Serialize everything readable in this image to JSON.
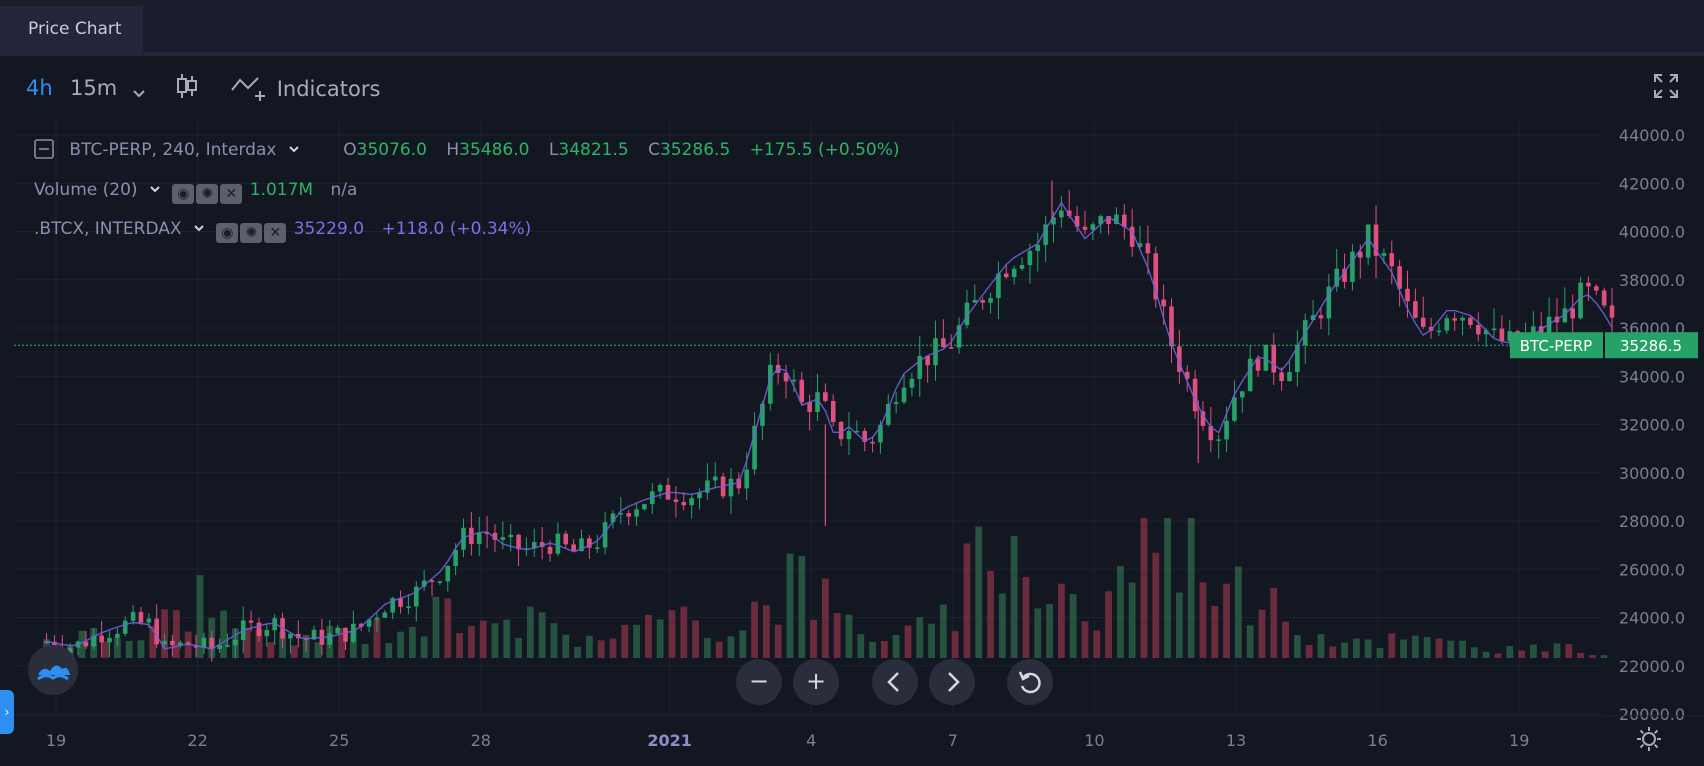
{
  "tab": {
    "title": "Price Chart"
  },
  "toolbar": {
    "interval_active": "4h",
    "interval_alt": "15m",
    "indicators_label": "Indicators"
  },
  "legend": {
    "symbol": "BTC-PERP, 240, Interdax",
    "o_label": "O",
    "o_val": "35076.0",
    "h_label": "H",
    "h_val": "35486.0",
    "l_label": "L",
    "l_val": "34821.5",
    "c_label": "C",
    "c_val": "35286.5",
    "change": "+175.5 (+0.50%)",
    "volume_label": "Volume (20)",
    "volume_val": "1.017M",
    "volume_na": "n/a",
    "index_label": ".BTCX, INTERDAX",
    "index_val": "35229.0",
    "index_change": "+118.0 (+0.34%)"
  },
  "price_tag": {
    "symbol": "BTC-PERP",
    "value": "35286.5"
  },
  "colors": {
    "up": "#26a269",
    "down": "#e0507f",
    "index_line": "#6a63d9",
    "accent": "#2f8ff0",
    "bg": "#131722"
  },
  "chart_data": {
    "type": "candlestick",
    "y_ticks": [
      "44000.0",
      "42000.0",
      "40000.0",
      "38000.0",
      "36000.0",
      "34000.0",
      "32000.0",
      "30000.0",
      "28000.0",
      "26000.0",
      "24000.0",
      "22000.0",
      "20000.0"
    ],
    "ylim": [
      20000,
      44000
    ],
    "x_ticks": [
      {
        "label": "19",
        "day": 0
      },
      {
        "label": "22",
        "day": 3
      },
      {
        "label": "25",
        "day": 6
      },
      {
        "label": "28",
        "day": 9
      },
      {
        "label": "2021",
        "day": 13
      },
      {
        "label": "4",
        "day": 16
      },
      {
        "label": "7",
        "day": 19
      },
      {
        "label": "10",
        "day": 22
      },
      {
        "label": "13",
        "day": 25
      },
      {
        "label": "16",
        "day": 28
      },
      {
        "label": "19",
        "day": 31
      }
    ],
    "last_price": 35286.5,
    "close_path": [
      [
        -0.2,
        23000
      ],
      [
        0.4,
        22800
      ],
      [
        1,
        23400
      ],
      [
        1.6,
        23800
      ],
      [
        2,
        23700
      ],
      [
        2.3,
        22700
      ],
      [
        2.8,
        22900
      ],
      [
        3.3,
        22700
      ],
      [
        4,
        23500
      ],
      [
        4.6,
        23800
      ],
      [
        5.2,
        23100
      ],
      [
        5.8,
        23200
      ],
      [
        6.4,
        23500
      ],
      [
        7,
        24600
      ],
      [
        7.6,
        25000
      ],
      [
        8.2,
        26000
      ],
      [
        8.6,
        27300
      ],
      [
        9.1,
        27600
      ],
      [
        9.5,
        27000
      ],
      [
        10,
        26800
      ],
      [
        10.5,
        27100
      ],
      [
        11,
        26700
      ],
      [
        11.5,
        27200
      ],
      [
        12,
        28500
      ],
      [
        12.5,
        28900
      ],
      [
        13,
        29200
      ],
      [
        13.5,
        29100
      ],
      [
        14,
        29400
      ],
      [
        14.5,
        29600
      ],
      [
        14.9,
        32300
      ],
      [
        15.2,
        34400
      ],
      [
        15.5,
        34200
      ],
      [
        15.8,
        32800
      ],
      [
        16.2,
        33100
      ],
      [
        16.5,
        31500
      ],
      [
        16.8,
        31900
      ],
      [
        17.2,
        31200
      ],
      [
        17.5,
        32000
      ],
      [
        17.9,
        34000
      ],
      [
        18.4,
        34800
      ],
      [
        18.9,
        35200
      ],
      [
        19.3,
        36500
      ],
      [
        19.8,
        37800
      ],
      [
        20.2,
        38800
      ],
      [
        20.8,
        39500
      ],
      [
        21.3,
        41200
      ],
      [
        21.8,
        39700
      ],
      [
        22.3,
        40600
      ],
      [
        22.8,
        40000
      ],
      [
        23.2,
        38200
      ],
      [
        23.6,
        35500
      ],
      [
        24.2,
        32700
      ],
      [
        24.6,
        31500
      ],
      [
        25,
        33400
      ],
      [
        25.5,
        34900
      ],
      [
        26,
        34200
      ],
      [
        26.5,
        35900
      ],
      [
        27,
        37500
      ],
      [
        27.4,
        38600
      ],
      [
        27.8,
        39700
      ],
      [
        28.3,
        38300
      ],
      [
        28.7,
        36500
      ],
      [
        29,
        35600
      ],
      [
        29.5,
        36800
      ],
      [
        30,
        36500
      ],
      [
        30.5,
        35500
      ],
      [
        31,
        35300
      ],
      [
        31.5,
        36000
      ],
      [
        32,
        36600
      ],
      [
        32.4,
        37500
      ],
      [
        32.7,
        36900
      ],
      [
        33,
        35900
      ]
    ],
    "volume_profile": [
      [
        0,
        1.2
      ],
      [
        2,
        1.4
      ],
      [
        3,
        3.9
      ],
      [
        4,
        1.2
      ],
      [
        5,
        1.1
      ],
      [
        6,
        1.5
      ],
      [
        7,
        1.8
      ],
      [
        8,
        2.5
      ],
      [
        9,
        3.7
      ],
      [
        10,
        2.2
      ],
      [
        11,
        1.3
      ],
      [
        12,
        1.7
      ],
      [
        13,
        2.2
      ],
      [
        14,
        1.7
      ],
      [
        15,
        3.4
      ],
      [
        15.5,
        5.0
      ],
      [
        16,
        4.5
      ],
      [
        16.5,
        2.6
      ],
      [
        17,
        1.8
      ],
      [
        18,
        1.4
      ],
      [
        19,
        2.4
      ],
      [
        19.5,
        5.8
      ],
      [
        20,
        8.0
      ],
      [
        20.5,
        4.2
      ],
      [
        21,
        5.5
      ],
      [
        21.5,
        3.8
      ],
      [
        22,
        2.0
      ],
      [
        22.5,
        4.6
      ],
      [
        23,
        7.6
      ],
      [
        24,
        8.5
      ],
      [
        25,
        4.2
      ],
      [
        26,
        2.4
      ],
      [
        27,
        1.3
      ],
      [
        28,
        1.2
      ],
      [
        29,
        1.0
      ],
      [
        30,
        0.8
      ],
      [
        31,
        0.5
      ],
      [
        32,
        0.6
      ],
      [
        33,
        0.2
      ]
    ]
  }
}
